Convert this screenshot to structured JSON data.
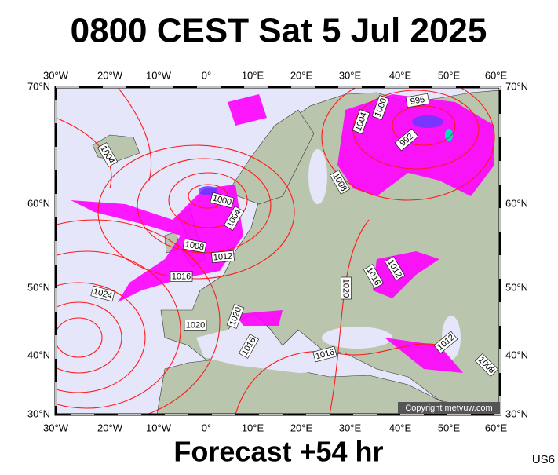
{
  "header": {
    "title": "0800 CEST Sat 5 Jul 2025"
  },
  "footer": {
    "forecast": "Forecast +54 hr",
    "code": "US6"
  },
  "copyright": "Copyright metvuw.com",
  "lon_labels": [
    "30°W",
    "20°W",
    "10°W",
    "0°",
    "10°E",
    "20°E",
    "30°E",
    "40°E",
    "50°E",
    "60°E"
  ],
  "lat_labels": [
    "70°N",
    "60°N",
    "50°N",
    "40°N",
    "30°N"
  ],
  "isobar_labels": [
    1004,
    1000,
    996,
    1004,
    992,
    1008,
    1000,
    1004,
    1008,
    1012,
    1016,
    1024,
    1020,
    1016,
    1012,
    1020,
    1020,
    1016,
    1016,
    1012,
    1008
  ]
}
